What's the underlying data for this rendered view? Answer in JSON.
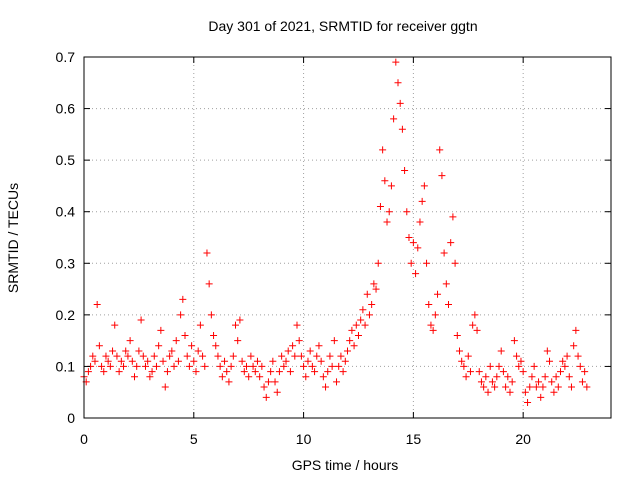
{
  "chart_data": {
    "type": "scatter",
    "title": "Day 301 of 2021, SRMTID for receiver ggtn",
    "xlabel": "GPS time / hours",
    "ylabel": "SRMTID / TECUs",
    "xlim": [
      0,
      24
    ],
    "ylim": [
      0,
      0.7
    ],
    "xticks": [
      0,
      5,
      10,
      15,
      20
    ],
    "yticks": [
      0,
      0.1,
      0.2,
      0.3,
      0.4,
      0.5,
      0.6,
      0.7
    ],
    "xtick_labels": [
      "0",
      "5",
      "10",
      "15",
      "20"
    ],
    "ytick_labels": [
      "0",
      "0.1",
      "0.2",
      "0.3",
      "0.4",
      "0.5",
      "0.6",
      "0.7"
    ],
    "grid": true,
    "marker": "+",
    "color": "#ff0000",
    "series": [
      {
        "name": "SRMTID",
        "points": [
          [
            0.0,
            0.08
          ],
          [
            0.1,
            0.07
          ],
          [
            0.2,
            0.09
          ],
          [
            0.3,
            0.1
          ],
          [
            0.4,
            0.12
          ],
          [
            0.5,
            0.11
          ],
          [
            0.6,
            0.22
          ],
          [
            0.7,
            0.14
          ],
          [
            0.8,
            0.1
          ],
          [
            0.9,
            0.09
          ],
          [
            1.0,
            0.12
          ],
          [
            1.1,
            0.11
          ],
          [
            1.2,
            0.1
          ],
          [
            1.3,
            0.13
          ],
          [
            1.4,
            0.18
          ],
          [
            1.5,
            0.12
          ],
          [
            1.6,
            0.09
          ],
          [
            1.7,
            0.11
          ],
          [
            1.8,
            0.1
          ],
          [
            1.9,
            0.13
          ],
          [
            2.0,
            0.12
          ],
          [
            2.1,
            0.15
          ],
          [
            2.2,
            0.11
          ],
          [
            2.3,
            0.08
          ],
          [
            2.4,
            0.1
          ],
          [
            2.5,
            0.13
          ],
          [
            2.6,
            0.19
          ],
          [
            2.7,
            0.12
          ],
          [
            2.8,
            0.1
          ],
          [
            2.9,
            0.11
          ],
          [
            3.0,
            0.08
          ],
          [
            3.1,
            0.09
          ],
          [
            3.2,
            0.12
          ],
          [
            3.3,
            0.1
          ],
          [
            3.4,
            0.14
          ],
          [
            3.5,
            0.17
          ],
          [
            3.6,
            0.11
          ],
          [
            3.7,
            0.06
          ],
          [
            3.8,
            0.09
          ],
          [
            3.9,
            0.12
          ],
          [
            4.0,
            0.13
          ],
          [
            4.1,
            0.1
          ],
          [
            4.2,
            0.15
          ],
          [
            4.3,
            0.11
          ],
          [
            4.4,
            0.2
          ],
          [
            4.5,
            0.23
          ],
          [
            4.6,
            0.16
          ],
          [
            4.7,
            0.12
          ],
          [
            4.8,
            0.1
          ],
          [
            4.9,
            0.14
          ],
          [
            5.0,
            0.11
          ],
          [
            5.1,
            0.09
          ],
          [
            5.2,
            0.13
          ],
          [
            5.3,
            0.18
          ],
          [
            5.4,
            0.12
          ],
          [
            5.5,
            0.1
          ],
          [
            5.6,
            0.32
          ],
          [
            5.7,
            0.26
          ],
          [
            5.8,
            0.2
          ],
          [
            5.9,
            0.16
          ],
          [
            6.0,
            0.14
          ],
          [
            6.1,
            0.12
          ],
          [
            6.2,
            0.1
          ],
          [
            6.3,
            0.08
          ],
          [
            6.4,
            0.11
          ],
          [
            6.5,
            0.09
          ],
          [
            6.6,
            0.07
          ],
          [
            6.7,
            0.1
          ],
          [
            6.8,
            0.12
          ],
          [
            6.9,
            0.18
          ],
          [
            7.0,
            0.15
          ],
          [
            7.1,
            0.19
          ],
          [
            7.2,
            0.11
          ],
          [
            7.3,
            0.09
          ],
          [
            7.4,
            0.1
          ],
          [
            7.5,
            0.08
          ],
          [
            7.6,
            0.12
          ],
          [
            7.7,
            0.1
          ],
          [
            7.8,
            0.09
          ],
          [
            7.9,
            0.11
          ],
          [
            8.0,
            0.08
          ],
          [
            8.1,
            0.1
          ],
          [
            8.2,
            0.06
          ],
          [
            8.3,
            0.04
          ],
          [
            8.4,
            0.07
          ],
          [
            8.5,
            0.09
          ],
          [
            8.6,
            0.11
          ],
          [
            8.7,
            0.07
          ],
          [
            8.8,
            0.05
          ],
          [
            8.9,
            0.09
          ],
          [
            9.0,
            0.12
          ],
          [
            9.1,
            0.1
          ],
          [
            9.2,
            0.11
          ],
          [
            9.3,
            0.13
          ],
          [
            9.4,
            0.09
          ],
          [
            9.5,
            0.14
          ],
          [
            9.6,
            0.12
          ],
          [
            9.7,
            0.18
          ],
          [
            9.8,
            0.15
          ],
          [
            9.9,
            0.12
          ],
          [
            10.0,
            0.1
          ],
          [
            10.1,
            0.08
          ],
          [
            10.2,
            0.11
          ],
          [
            10.3,
            0.13
          ],
          [
            10.4,
            0.1
          ],
          [
            10.5,
            0.09
          ],
          [
            10.6,
            0.12
          ],
          [
            10.7,
            0.14
          ],
          [
            10.8,
            0.11
          ],
          [
            10.9,
            0.08
          ],
          [
            11.0,
            0.06
          ],
          [
            11.1,
            0.09
          ],
          [
            11.2,
            0.12
          ],
          [
            11.3,
            0.1
          ],
          [
            11.4,
            0.15
          ],
          [
            11.5,
            0.07
          ],
          [
            11.6,
            0.1
          ],
          [
            11.7,
            0.12
          ],
          [
            11.8,
            0.09
          ],
          [
            11.9,
            0.11
          ],
          [
            12.0,
            0.13
          ],
          [
            12.1,
            0.15
          ],
          [
            12.2,
            0.17
          ],
          [
            12.3,
            0.14
          ],
          [
            12.4,
            0.18
          ],
          [
            12.5,
            0.16
          ],
          [
            12.6,
            0.19
          ],
          [
            12.7,
            0.21
          ],
          [
            12.8,
            0.18
          ],
          [
            12.9,
            0.24
          ],
          [
            13.0,
            0.2
          ],
          [
            13.1,
            0.22
          ],
          [
            13.2,
            0.26
          ],
          [
            13.3,
            0.25
          ],
          [
            13.4,
            0.3
          ],
          [
            13.5,
            0.41
          ],
          [
            13.6,
            0.52
          ],
          [
            13.7,
            0.46
          ],
          [
            13.8,
            0.38
          ],
          [
            13.9,
            0.4
          ],
          [
            14.0,
            0.45
          ],
          [
            14.1,
            0.58
          ],
          [
            14.2,
            0.69
          ],
          [
            14.3,
            0.65
          ],
          [
            14.4,
            0.61
          ],
          [
            14.5,
            0.56
          ],
          [
            14.6,
            0.48
          ],
          [
            14.7,
            0.4
          ],
          [
            14.8,
            0.35
          ],
          [
            14.9,
            0.3
          ],
          [
            15.0,
            0.34
          ],
          [
            15.1,
            0.28
          ],
          [
            15.2,
            0.33
          ],
          [
            15.3,
            0.38
          ],
          [
            15.4,
            0.42
          ],
          [
            15.5,
            0.45
          ],
          [
            15.6,
            0.3
          ],
          [
            15.7,
            0.22
          ],
          [
            15.8,
            0.18
          ],
          [
            15.9,
            0.17
          ],
          [
            16.0,
            0.2
          ],
          [
            16.1,
            0.24
          ],
          [
            16.2,
            0.52
          ],
          [
            16.3,
            0.47
          ],
          [
            16.4,
            0.32
          ],
          [
            16.5,
            0.26
          ],
          [
            16.6,
            0.22
          ],
          [
            16.7,
            0.34
          ],
          [
            16.8,
            0.39
          ],
          [
            16.9,
            0.3
          ],
          [
            17.0,
            0.16
          ],
          [
            17.1,
            0.13
          ],
          [
            17.2,
            0.11
          ],
          [
            17.3,
            0.1
          ],
          [
            17.4,
            0.08
          ],
          [
            17.5,
            0.12
          ],
          [
            17.6,
            0.09
          ],
          [
            17.7,
            0.18
          ],
          [
            17.8,
            0.2
          ],
          [
            17.9,
            0.17
          ],
          [
            18.0,
            0.09
          ],
          [
            18.1,
            0.07
          ],
          [
            18.2,
            0.06
          ],
          [
            18.3,
            0.08
          ],
          [
            18.4,
            0.05
          ],
          [
            18.5,
            0.1
          ],
          [
            18.6,
            0.07
          ],
          [
            18.7,
            0.06
          ],
          [
            18.8,
            0.08
          ],
          [
            18.9,
            0.1
          ],
          [
            19.0,
            0.13
          ],
          [
            19.1,
            0.09
          ],
          [
            19.2,
            0.06
          ],
          [
            19.3,
            0.08
          ],
          [
            19.4,
            0.05
          ],
          [
            19.5,
            0.07
          ],
          [
            19.6,
            0.15
          ],
          [
            19.7,
            0.12
          ],
          [
            19.8,
            0.1
          ],
          [
            19.9,
            0.11
          ],
          [
            20.0,
            0.09
          ],
          [
            20.1,
            0.05
          ],
          [
            20.2,
            0.03
          ],
          [
            20.3,
            0.06
          ],
          [
            20.4,
            0.08
          ],
          [
            20.5,
            0.1
          ],
          [
            20.6,
            0.06
          ],
          [
            20.7,
            0.07
          ],
          [
            20.8,
            0.04
          ],
          [
            20.9,
            0.06
          ],
          [
            21.0,
            0.08
          ],
          [
            21.1,
            0.13
          ],
          [
            21.2,
            0.11
          ],
          [
            21.3,
            0.07
          ],
          [
            21.4,
            0.05
          ],
          [
            21.5,
            0.08
          ],
          [
            21.6,
            0.06
          ],
          [
            21.7,
            0.09
          ],
          [
            21.8,
            0.11
          ],
          [
            21.9,
            0.1
          ],
          [
            22.0,
            0.12
          ],
          [
            22.1,
            0.08
          ],
          [
            22.2,
            0.06
          ],
          [
            22.3,
            0.14
          ],
          [
            22.4,
            0.17
          ],
          [
            22.5,
            0.12
          ],
          [
            22.6,
            0.1
          ],
          [
            22.7,
            0.07
          ],
          [
            22.8,
            0.09
          ],
          [
            22.9,
            0.06
          ]
        ]
      }
    ]
  }
}
